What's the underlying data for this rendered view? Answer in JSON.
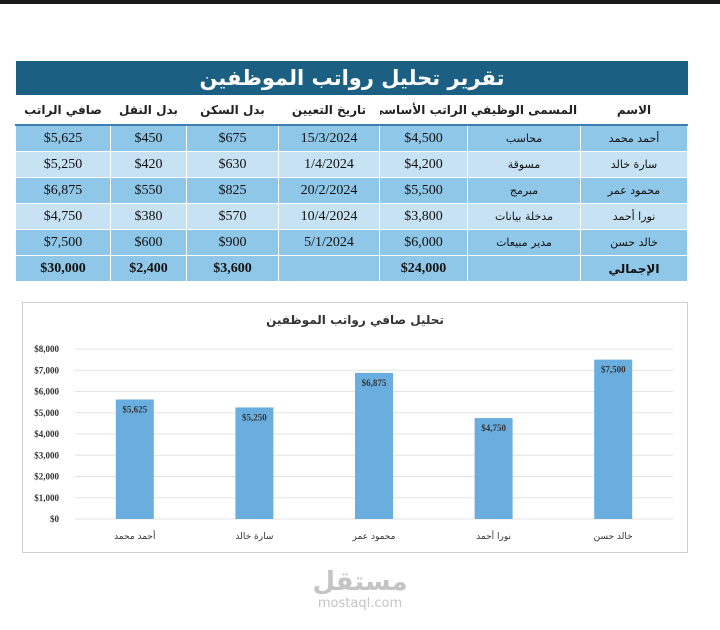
{
  "report": {
    "title": "تقرير تحليل رواتب الموظفين",
    "columns": [
      "الاسم",
      "المسمى الوظيفي",
      "الراتب الأساسي",
      "تاريخ التعيين",
      "بدل السكن",
      "بدل النقل",
      "صافي الراتب"
    ],
    "rows": [
      [
        "أحمد محمد",
        "محاسب",
        "$4,500",
        "15/3/2024",
        "$675",
        "$450",
        "$5,625"
      ],
      [
        "سارة خالد",
        "مسوقة",
        "$4,200",
        "1/4/2024",
        "$630",
        "$420",
        "$5,250"
      ],
      [
        "محمود عمر",
        "مبرمج",
        "$5,500",
        "20/2/2024",
        "$825",
        "$550",
        "$6,875"
      ],
      [
        "نورا أحمد",
        "مدخلة بيانات",
        "$3,800",
        "10/4/2024",
        "$570",
        "$380",
        "$4,750"
      ],
      [
        "خالد حسن",
        "مدير مبيعات",
        "$6,000",
        "5/1/2024",
        "$900",
        "$600",
        "$7,500"
      ]
    ],
    "total_row": [
      "الإجمالي",
      "",
      "$24,000",
      "",
      "$3,600",
      "$2,400",
      "$30,000"
    ]
  },
  "chart_data": {
    "type": "bar",
    "title": "تحليل صافي رواتب الموظفين",
    "categories": [
      "أحمد محمد",
      "سارة خالد",
      "محمود عمر",
      "نورا أحمد",
      "خالد حسن"
    ],
    "values": [
      5625,
      5250,
      6875,
      4750,
      7500
    ],
    "data_labels": [
      "$5,625",
      "$5,250",
      "$6,875",
      "$4,750",
      "$7,500"
    ],
    "ylim": [
      0,
      8000
    ],
    "yticks": [
      0,
      1000,
      2000,
      3000,
      4000,
      5000,
      6000,
      7000,
      8000
    ],
    "ytick_labels": [
      "$0",
      "$1,000",
      "$2,000",
      "$3,000",
      "$4,000",
      "$5,000",
      "$6,000",
      "$7,000",
      "$8,000"
    ],
    "grid": true,
    "legend": "none",
    "bar_color": "#6aaee0"
  },
  "watermark": {
    "arabic": "مستقل",
    "latin": "mostaql.com"
  }
}
